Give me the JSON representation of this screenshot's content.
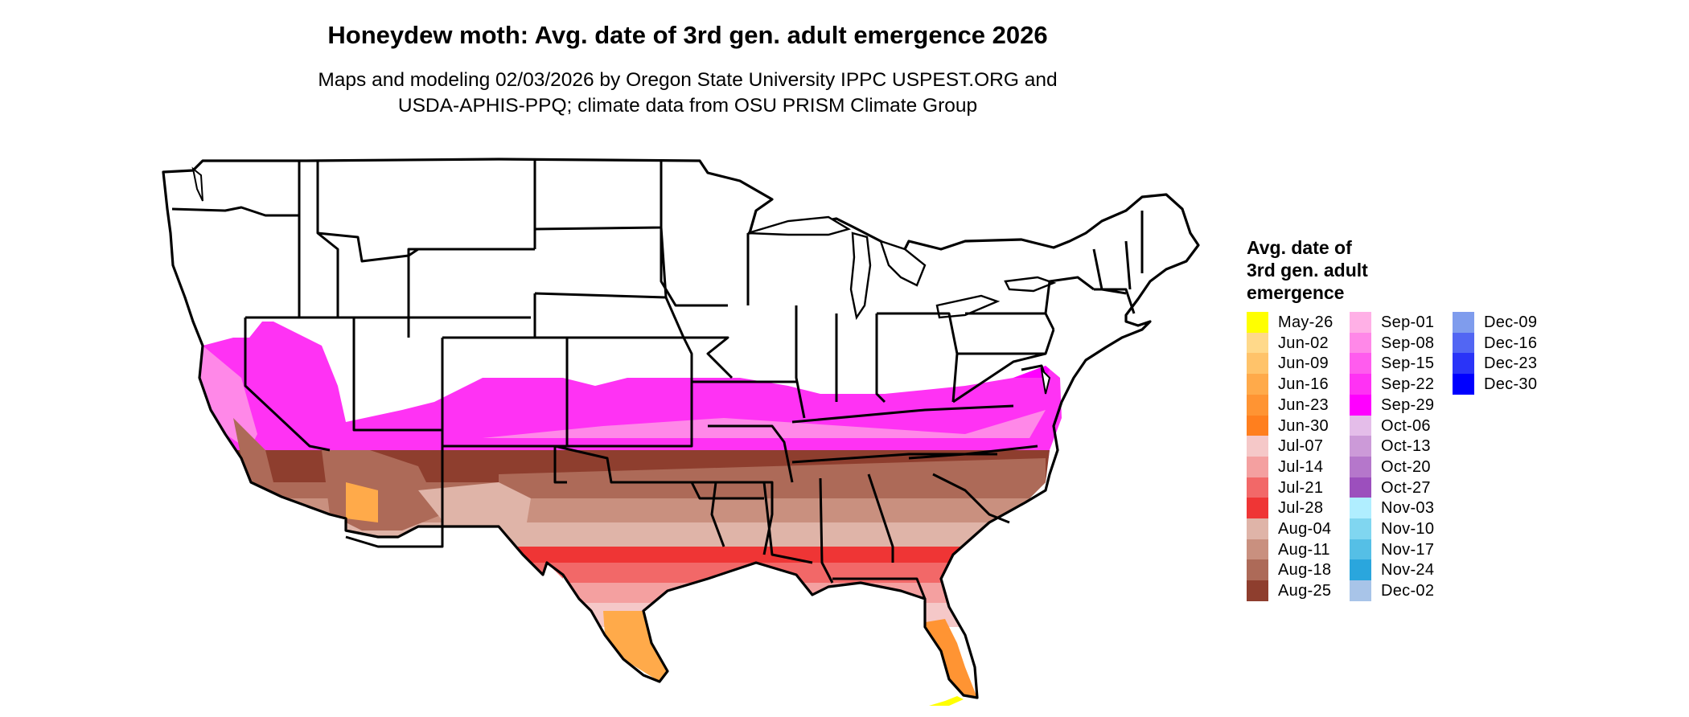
{
  "title": "Honeydew moth: Avg. date of 3rd gen. adult emergence 2026",
  "subtitle_line1": "Maps and modeling 02/03/2026 by Oregon State University IPPC USPEST.ORG and",
  "subtitle_line2": "USDA-APHIS-PPQ; climate data from OSU PRISM Climate Group",
  "legend": {
    "title_line1": "Avg. date of",
    "title_line2": "3rd gen. adult",
    "title_line3": "emergence",
    "items": [
      {
        "label": "May-26",
        "color": "#ffff00"
      },
      {
        "label": "Jun-02",
        "color": "#ffd98a"
      },
      {
        "label": "Jun-09",
        "color": "#ffc36a"
      },
      {
        "label": "Jun-16",
        "color": "#ffaa4a"
      },
      {
        "label": "Jun-23",
        "color": "#ff9433"
      },
      {
        "label": "Jun-30",
        "color": "#ff7f1e"
      },
      {
        "label": "Jul-07",
        "color": "#f5c8c8"
      },
      {
        "label": "Jul-14",
        "color": "#f4a0a0"
      },
      {
        "label": "Jul-21",
        "color": "#f26868"
      },
      {
        "label": "Jul-28",
        "color": "#ef3535"
      },
      {
        "label": "Aug-04",
        "color": "#dfb4a8"
      },
      {
        "label": "Aug-11",
        "color": "#c9907f"
      },
      {
        "label": "Aug-18",
        "color": "#ad6a58"
      },
      {
        "label": "Aug-25",
        "color": "#8e3e2e"
      },
      {
        "label": "Sep-01",
        "color": "#ffb0e6"
      },
      {
        "label": "Sep-08",
        "color": "#ff88e8"
      },
      {
        "label": "Sep-15",
        "color": "#ff5cee"
      },
      {
        "label": "Sep-22",
        "color": "#ff32f4"
      },
      {
        "label": "Sep-29",
        "color": "#ff00ff"
      },
      {
        "label": "Oct-06",
        "color": "#e4bde9"
      },
      {
        "label": "Oct-13",
        "color": "#cc9ad8"
      },
      {
        "label": "Oct-20",
        "color": "#b577cb"
      },
      {
        "label": "Oct-27",
        "color": "#9c4fbd"
      },
      {
        "label": "Nov-03",
        "color": "#b0eeff"
      },
      {
        "label": "Nov-10",
        "color": "#80d6f0"
      },
      {
        "label": "Nov-17",
        "color": "#55bfe6"
      },
      {
        "label": "Nov-24",
        "color": "#2aa6dd"
      },
      {
        "label": "Dec-02",
        "color": "#a8c4e8"
      },
      {
        "label": "Dec-09",
        "color": "#7f9ced"
      },
      {
        "label": "Dec-16",
        "color": "#5266f3"
      },
      {
        "label": "Dec-23",
        "color": "#2a34f8"
      },
      {
        "label": "Dec-30",
        "color": "#0000ff"
      }
    ]
  },
  "map_colors": {
    "state_border": "#000000",
    "no_data": "#ffffff"
  }
}
